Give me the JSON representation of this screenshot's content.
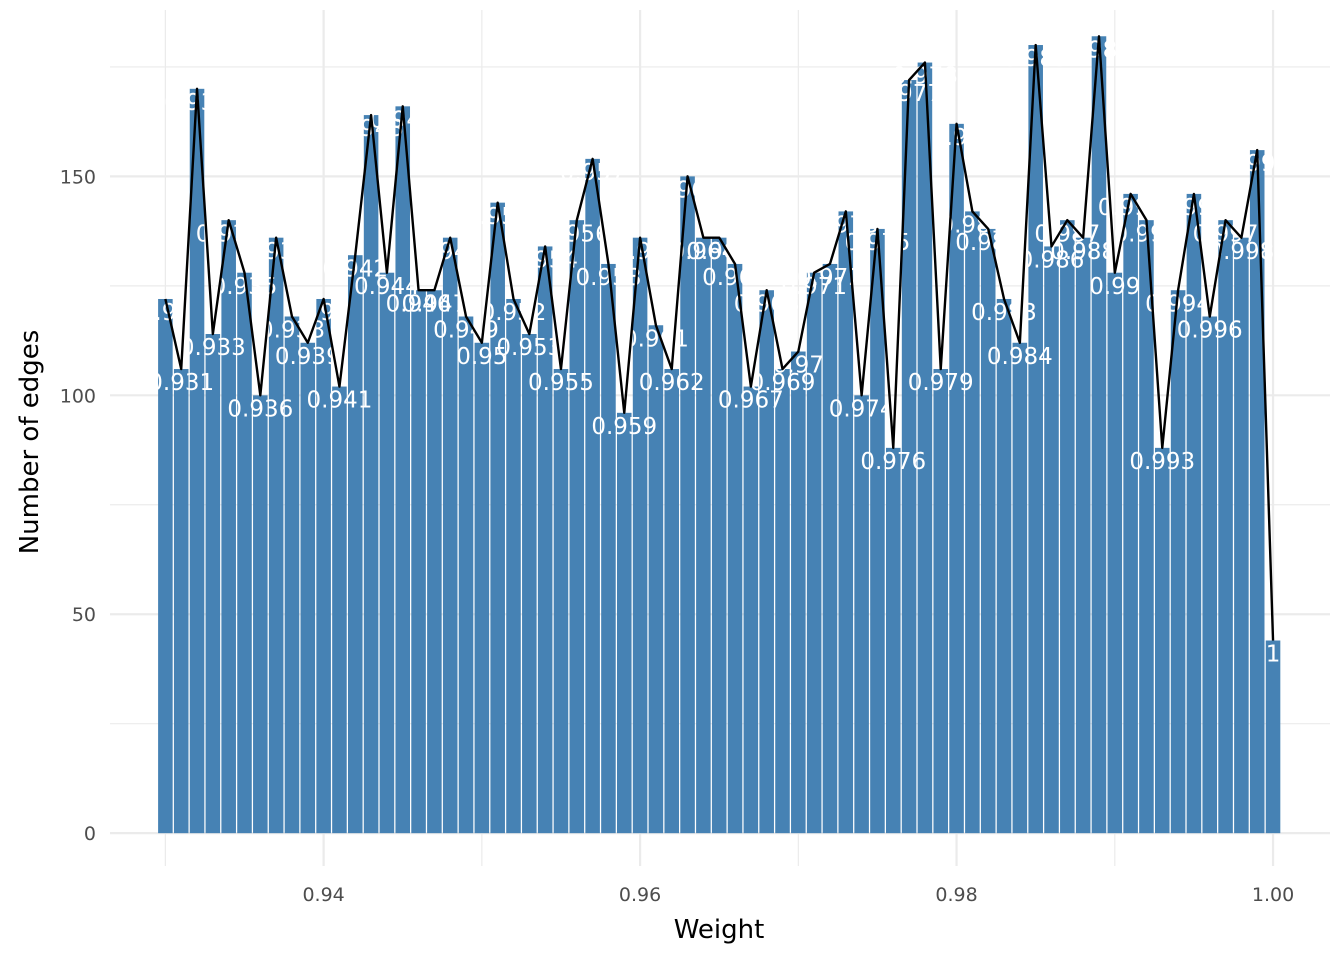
{
  "chart_data": {
    "type": "bar",
    "title": "",
    "xlabel": "Weight",
    "ylabel": "Number of edges",
    "xlim": [
      0.9265,
      1.0036
    ],
    "ylim": [
      -7.5,
      188
    ],
    "x_ticks": [
      {
        "value": 0.94,
        "label": "0.94"
      },
      {
        "value": 0.96,
        "label": "0.96"
      },
      {
        "value": 0.98,
        "label": "0.98"
      },
      {
        "value": 1.0,
        "label": "1.00"
      }
    ],
    "x_minor_ticks": [
      0.93,
      0.95,
      0.97,
      0.99
    ],
    "y_ticks": [
      {
        "value": 0,
        "label": "0"
      },
      {
        "value": 50,
        "label": "50"
      },
      {
        "value": 100,
        "label": "100"
      },
      {
        "value": 150,
        "label": "150"
      }
    ],
    "y_minor_ticks": [
      25,
      75,
      125,
      175
    ],
    "grid": true,
    "bar_width": 0.00092,
    "label_offset": -3,
    "overlay": "line",
    "x": [
      0.93,
      0.931,
      0.932,
      0.933,
      0.934,
      0.935,
      0.936,
      0.937,
      0.938,
      0.939,
      0.94,
      0.941,
      0.942,
      0.943,
      0.944,
      0.945,
      0.946,
      0.947,
      0.948,
      0.949,
      0.95,
      0.951,
      0.952,
      0.953,
      0.954,
      0.955,
      0.956,
      0.957,
      0.958,
      0.959,
      0.96,
      0.961,
      0.962,
      0.963,
      0.964,
      0.965,
      0.966,
      0.967,
      0.968,
      0.969,
      0.97,
      0.971,
      0.972,
      0.973,
      0.974,
      0.975,
      0.976,
      0.977,
      0.978,
      0.979,
      0.98,
      0.981,
      0.982,
      0.983,
      0.984,
      0.985,
      0.986,
      0.987,
      0.988,
      0.989,
      0.99,
      0.991,
      0.992,
      0.993,
      0.994,
      0.995,
      0.996,
      0.997,
      0.998,
      0.999,
      1.0
    ],
    "labels": [
      "0.93",
      "0.931",
      "0.932",
      "0.933",
      "0.934",
      "0.935",
      "0.936",
      "0.937",
      "0.938",
      "0.939",
      "0.94",
      "0.941",
      "0.942",
      "0.943",
      "0.944",
      "0.945",
      "0.946",
      "0.947",
      "0.948",
      "0.949",
      "0.95",
      "0.951",
      "0.952",
      "0.953",
      "0.954",
      "0.955",
      "0.956",
      "0.957",
      "0.958",
      "0.959",
      "0.96",
      "0.961",
      "0.962",
      "0.963",
      "0.964",
      "0.965",
      "0.966",
      "0.967",
      "0.968",
      "0.969",
      "0.97",
      "0.971",
      "0.972",
      "0.973",
      "0.974",
      "0.975",
      "0.976",
      "0.977",
      "0.978",
      "0.979",
      "0.98",
      "0.981",
      "0.982",
      "0.983",
      "0.984",
      "0.985",
      "0.986",
      "0.987",
      "0.988",
      "0.989",
      "0.99",
      "0.991",
      "0.992",
      "0.993",
      "0.994",
      "0.995",
      "0.996",
      "0.997",
      "0.998",
      "0.999",
      "1"
    ],
    "values": [
      122,
      106,
      170,
      114,
      140,
      128,
      100,
      136,
      118,
      112,
      122,
      102,
      132,
      164,
      128,
      166,
      124,
      124,
      136,
      118,
      112,
      144,
      122,
      114,
      134,
      106,
      140,
      154,
      130,
      96,
      136,
      116,
      106,
      150,
      136,
      136,
      130,
      102,
      124,
      106,
      110,
      128,
      130,
      142,
      100,
      138,
      88,
      172,
      176,
      106,
      162,
      142,
      138,
      122,
      112,
      180,
      134,
      140,
      136,
      182,
      128,
      146,
      140,
      88,
      124,
      146,
      118,
      140,
      136,
      156,
      44
    ],
    "colors": {
      "bar": "#4682b4",
      "line": "#000000",
      "label": "#ffffff",
      "grid": "#ebebeb",
      "axis_text": "#4d4d4d"
    }
  }
}
